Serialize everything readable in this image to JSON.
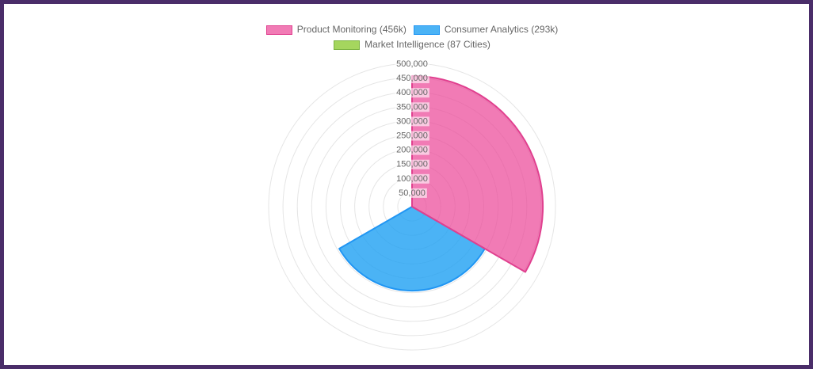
{
  "page": {
    "background": "#FFFFFF",
    "border_color": "#4A2D69"
  },
  "chart_data": {
    "type": "polar_area",
    "title": "",
    "start_angle": "top",
    "direction": "clockwise",
    "legend_position": "top",
    "segments": [
      {
        "label": "Product Monitoring (456k)",
        "category": "Product Monitoring",
        "value": 456000,
        "fill": "rgba(236,72,153,0.72)",
        "border": "#E0408F"
      },
      {
        "label": "Consumer Analytics (293k)",
        "category": "Consumer Analytics",
        "value": 293000,
        "fill": "rgba(30,160,242,0.80)",
        "border": "#2196F3"
      },
      {
        "label": "Market Intelligence (87 Cities)",
        "category": "Market Intelligence",
        "value": 87,
        "fill": "rgba(142,204,54,0.80)",
        "border": "#7CB342"
      }
    ],
    "axis": {
      "min": 0,
      "max": 500000,
      "step": 50000,
      "tick_labels": [
        "500,000",
        "450,000",
        "400,000",
        "350,000",
        "300,000",
        "250,000",
        "200,000",
        "150,000",
        "100,000",
        "50,000"
      ],
      "tick_color": "#666666",
      "tick_backdrop": "rgba(255,255,255,0.6)"
    },
    "grid": {
      "show": true,
      "circles": 10,
      "color": "#E5E5E5"
    }
  }
}
